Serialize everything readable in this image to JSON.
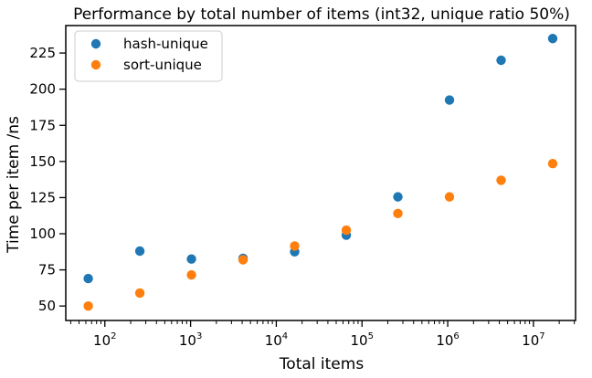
{
  "chart_data": {
    "type": "scatter",
    "title": "Performance by total number of items (int32, unique ratio 50%)",
    "xlabel": "Total items",
    "ylabel": "Time per item /ns",
    "xscale": "log",
    "xlim": [
      35,
      31000000
    ],
    "ylim": [
      40,
      244
    ],
    "x": [
      64,
      256,
      1024,
      4096,
      16384,
      65536,
      262144,
      1048576,
      4194304,
      16777216
    ],
    "series": [
      {
        "name": "hash-unique",
        "color": "#1f77b4",
        "values": [
          69,
          88,
          82.5,
          83,
          87.5,
          99,
          125.5,
          192.5,
          220,
          235
        ]
      },
      {
        "name": "sort-unique",
        "color": "#ff7f0e",
        "values": [
          50,
          59,
          71.5,
          82,
          91.5,
          102.5,
          114,
          125.5,
          137,
          148.5
        ]
      }
    ],
    "x_ticks": [
      {
        "base": "10",
        "exp": "2",
        "value": 100
      },
      {
        "base": "10",
        "exp": "3",
        "value": 1000
      },
      {
        "base": "10",
        "exp": "4",
        "value": 10000
      },
      {
        "base": "10",
        "exp": "5",
        "value": 100000
      },
      {
        "base": "10",
        "exp": "6",
        "value": 1000000
      },
      {
        "base": "10",
        "exp": "7",
        "value": 10000000
      }
    ],
    "y_ticks": [
      "50",
      "75",
      "100",
      "125",
      "150",
      "175",
      "200",
      "225"
    ],
    "legend_position": "top-left",
    "grid": false
  }
}
